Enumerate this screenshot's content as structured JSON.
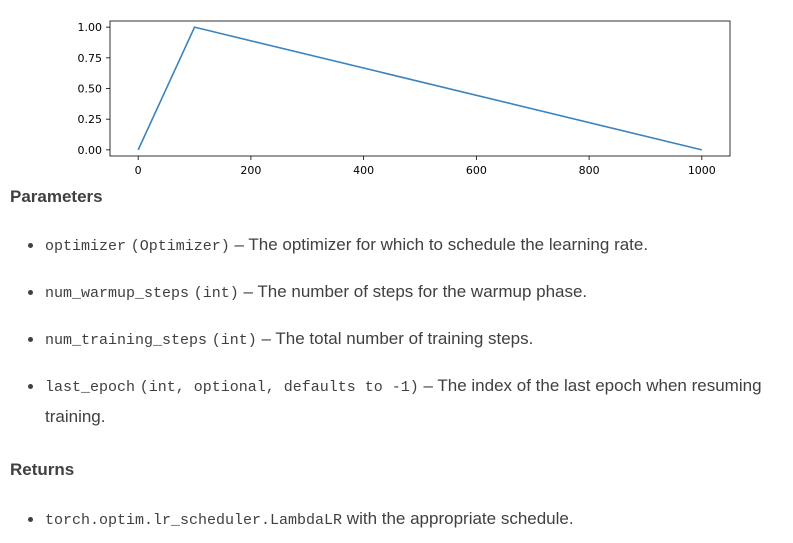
{
  "chart_data": {
    "type": "line",
    "x": [
      0,
      100,
      1000
    ],
    "y": [
      0.0,
      1.0,
      0.0
    ],
    "xticks": [
      "0",
      "200",
      "400",
      "600",
      "800",
      "1000"
    ],
    "xtick_values": [
      0,
      200,
      400,
      600,
      800,
      1000
    ],
    "yticks": [
      "0.00",
      "0.25",
      "0.50",
      "0.75",
      "1.00"
    ],
    "ytick_values": [
      0.0,
      0.25,
      0.5,
      0.75,
      1.0
    ],
    "xlim": [
      -50,
      1050
    ],
    "ylim": [
      -0.05,
      1.05
    ],
    "grid": false,
    "line_color": "#3b83bd",
    "title": "",
    "xlabel": "",
    "ylabel": ""
  },
  "parameters_heading": "Parameters",
  "parameters": [
    {
      "name": "optimizer",
      "type": "(Optimizer)",
      "desc": " – The optimizer for which to schedule the learning rate."
    },
    {
      "name": "num_warmup_steps",
      "type": "(int)",
      "desc": " – The number of steps for the warmup phase."
    },
    {
      "name": "num_training_steps",
      "type": "(int)",
      "desc": " – The total number of training steps."
    },
    {
      "name": "last_epoch",
      "type": "(int, optional, defaults to -1)",
      "desc": " – The index of the last epoch when resuming training."
    }
  ],
  "returns_heading": "Returns",
  "returns": {
    "code": "torch.optim.lr_scheduler.LambdaLR",
    "desc": " with the appropriate schedule."
  }
}
